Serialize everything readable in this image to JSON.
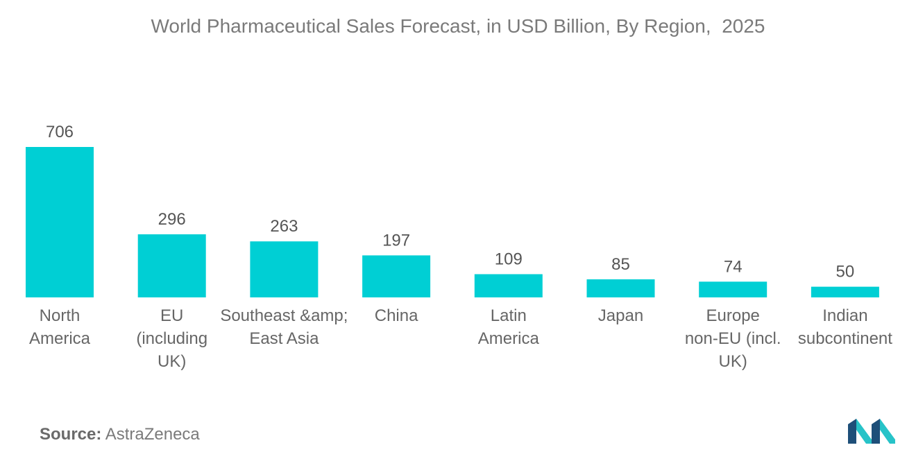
{
  "chart_data": {
    "type": "bar",
    "title": "World Pharmaceutical Sales Forecast, in USD Billion, By Region,  2025",
    "categories": [
      [
        "North",
        "America"
      ],
      [
        "EU",
        "(including",
        "UK)"
      ],
      [
        "Southeast &amp;",
        "East Asia"
      ],
      [
        "China"
      ],
      [
        "Latin",
        "America"
      ],
      [
        "Japan"
      ],
      [
        "Europe",
        "non-EU (incl.",
        "UK)"
      ],
      [
        "Indian",
        "subcontinent"
      ]
    ],
    "values": [
      706,
      296,
      263,
      197,
      109,
      85,
      74,
      50
    ],
    "ylim": [
      0,
      720
    ],
    "grid": false,
    "legend": "none",
    "bar_color": "#00cfd4"
  },
  "source": {
    "label": "Source:",
    "value": "AstraZeneca"
  },
  "logo": {
    "icon": "mordor-intelligence-logo-icon",
    "colors": [
      "#1e4f79",
      "#27c3c8"
    ]
  }
}
